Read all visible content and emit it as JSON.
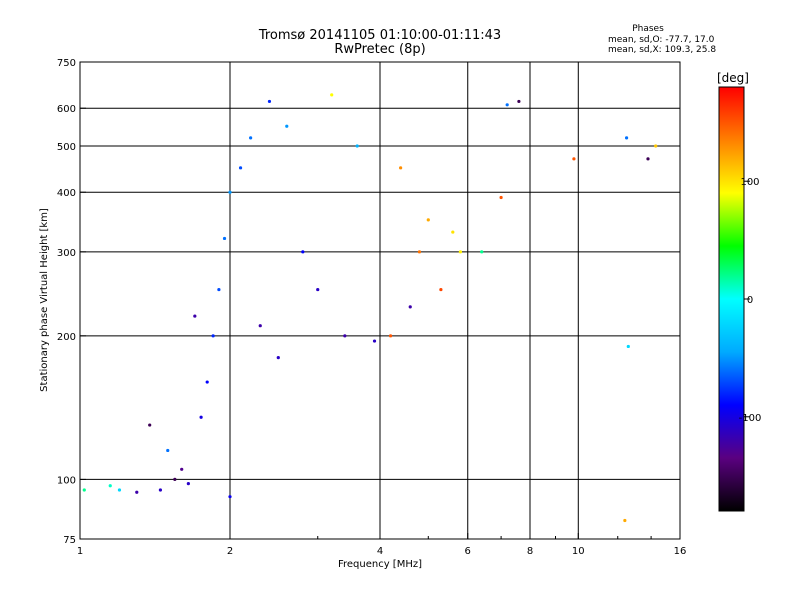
{
  "chart_data": {
    "type": "scatter",
    "title": "Tromsø 20141105 01:10:00-01:11:43",
    "subtitle": "RwPretec (8p)",
    "xlabel": "Frequency [MHz]",
    "ylabel": "Stationary phase Virtual Height [km]",
    "x_scale": "log",
    "y_scale": "log",
    "xlim": [
      1,
      16
    ],
    "ylim": [
      75,
      750
    ],
    "x_ticks": [
      1,
      2,
      4,
      6,
      8,
      10,
      16
    ],
    "x_tick_labels": [
      "1",
      "2",
      "4",
      "6",
      "8",
      "10",
      "16"
    ],
    "y_ticks": [
      75,
      100,
      200,
      300,
      400,
      500,
      600,
      750
    ],
    "y_tick_labels": [
      "75",
      "100",
      "200",
      "300",
      "400",
      "500",
      "600",
      "750"
    ],
    "grid": true,
    "phase_stats": {
      "heading": "Phases",
      "line_o": "mean, sd,O: -77.7, 17.0",
      "line_x": "mean, sd,X: 109.3, 25.8"
    },
    "colorbar": {
      "label": "[deg]",
      "range": [
        -180,
        180
      ],
      "ticks": [
        100,
        0,
        -100
      ],
      "tick_labels": [
        "100",
        "0",
        "-100"
      ],
      "colormap": [
        "#000000",
        "#5a0080",
        "#0000ff",
        "#00aaff",
        "#00ffff",
        "#00ff00",
        "#ffff00",
        "#ff8000",
        "#ff0000"
      ]
    },
    "series": [
      {
        "points": [
          {
            "x": 1.02,
            "y": 95,
            "c": 20
          },
          {
            "x": 1.15,
            "y": 97,
            "c": 10
          },
          {
            "x": 1.2,
            "y": 95,
            "c": -20
          },
          {
            "x": 1.3,
            "y": 94,
            "c": -120
          },
          {
            "x": 1.38,
            "y": 130,
            "c": -150
          },
          {
            "x": 1.45,
            "y": 95,
            "c": -110
          },
          {
            "x": 1.5,
            "y": 115,
            "c": -60
          },
          {
            "x": 1.55,
            "y": 100,
            "c": -150
          },
          {
            "x": 1.6,
            "y": 105,
            "c": -130
          },
          {
            "x": 1.65,
            "y": 98,
            "c": -110
          },
          {
            "x": 1.7,
            "y": 220,
            "c": -120
          },
          {
            "x": 1.75,
            "y": 135,
            "c": -100
          },
          {
            "x": 1.8,
            "y": 160,
            "c": -90
          },
          {
            "x": 1.85,
            "y": 200,
            "c": -80
          },
          {
            "x": 1.9,
            "y": 250,
            "c": -70
          },
          {
            "x": 1.95,
            "y": 320,
            "c": -60
          },
          {
            "x": 2.0,
            "y": 400,
            "c": -50
          },
          {
            "x": 2.0,
            "y": 92,
            "c": -95
          },
          {
            "x": 2.1,
            "y": 450,
            "c": -70
          },
          {
            "x": 2.2,
            "y": 520,
            "c": -60
          },
          {
            "x": 2.3,
            "y": 210,
            "c": -120
          },
          {
            "x": 2.4,
            "y": 620,
            "c": -80
          },
          {
            "x": 2.5,
            "y": 180,
            "c": -110
          },
          {
            "x": 2.6,
            "y": 550,
            "c": -50
          },
          {
            "x": 2.8,
            "y": 300,
            "c": -90
          },
          {
            "x": 3.0,
            "y": 250,
            "c": -110
          },
          {
            "x": 3.2,
            "y": 640,
            "c": 90
          },
          {
            "x": 3.4,
            "y": 200,
            "c": -120
          },
          {
            "x": 3.6,
            "y": 500,
            "c": -40
          },
          {
            "x": 3.9,
            "y": 195,
            "c": -110
          },
          {
            "x": 4.2,
            "y": 200,
            "c": 150
          },
          {
            "x": 4.4,
            "y": 450,
            "c": 130
          },
          {
            "x": 4.6,
            "y": 230,
            "c": -120
          },
          {
            "x": 4.8,
            "y": 300,
            "c": 140
          },
          {
            "x": 5.0,
            "y": 350,
            "c": 120
          },
          {
            "x": 5.3,
            "y": 250,
            "c": 155
          },
          {
            "x": 5.6,
            "y": 330,
            "c": 100
          },
          {
            "x": 5.8,
            "y": 300,
            "c": 95
          },
          {
            "x": 6.4,
            "y": 300,
            "c": 20
          },
          {
            "x": 7.0,
            "y": 390,
            "c": 150
          },
          {
            "x": 7.2,
            "y": 610,
            "c": -60
          },
          {
            "x": 7.6,
            "y": 620,
            "c": -150
          },
          {
            "x": 9.8,
            "y": 470,
            "c": 150
          },
          {
            "x": 12.5,
            "y": 520,
            "c": -60
          },
          {
            "x": 13.8,
            "y": 470,
            "c": -150
          },
          {
            "x": 14.3,
            "y": 500,
            "c": 110
          },
          {
            "x": 12.6,
            "y": 190,
            "c": -20
          },
          {
            "x": 12.4,
            "y": 82,
            "c": 120
          }
        ]
      }
    ]
  }
}
